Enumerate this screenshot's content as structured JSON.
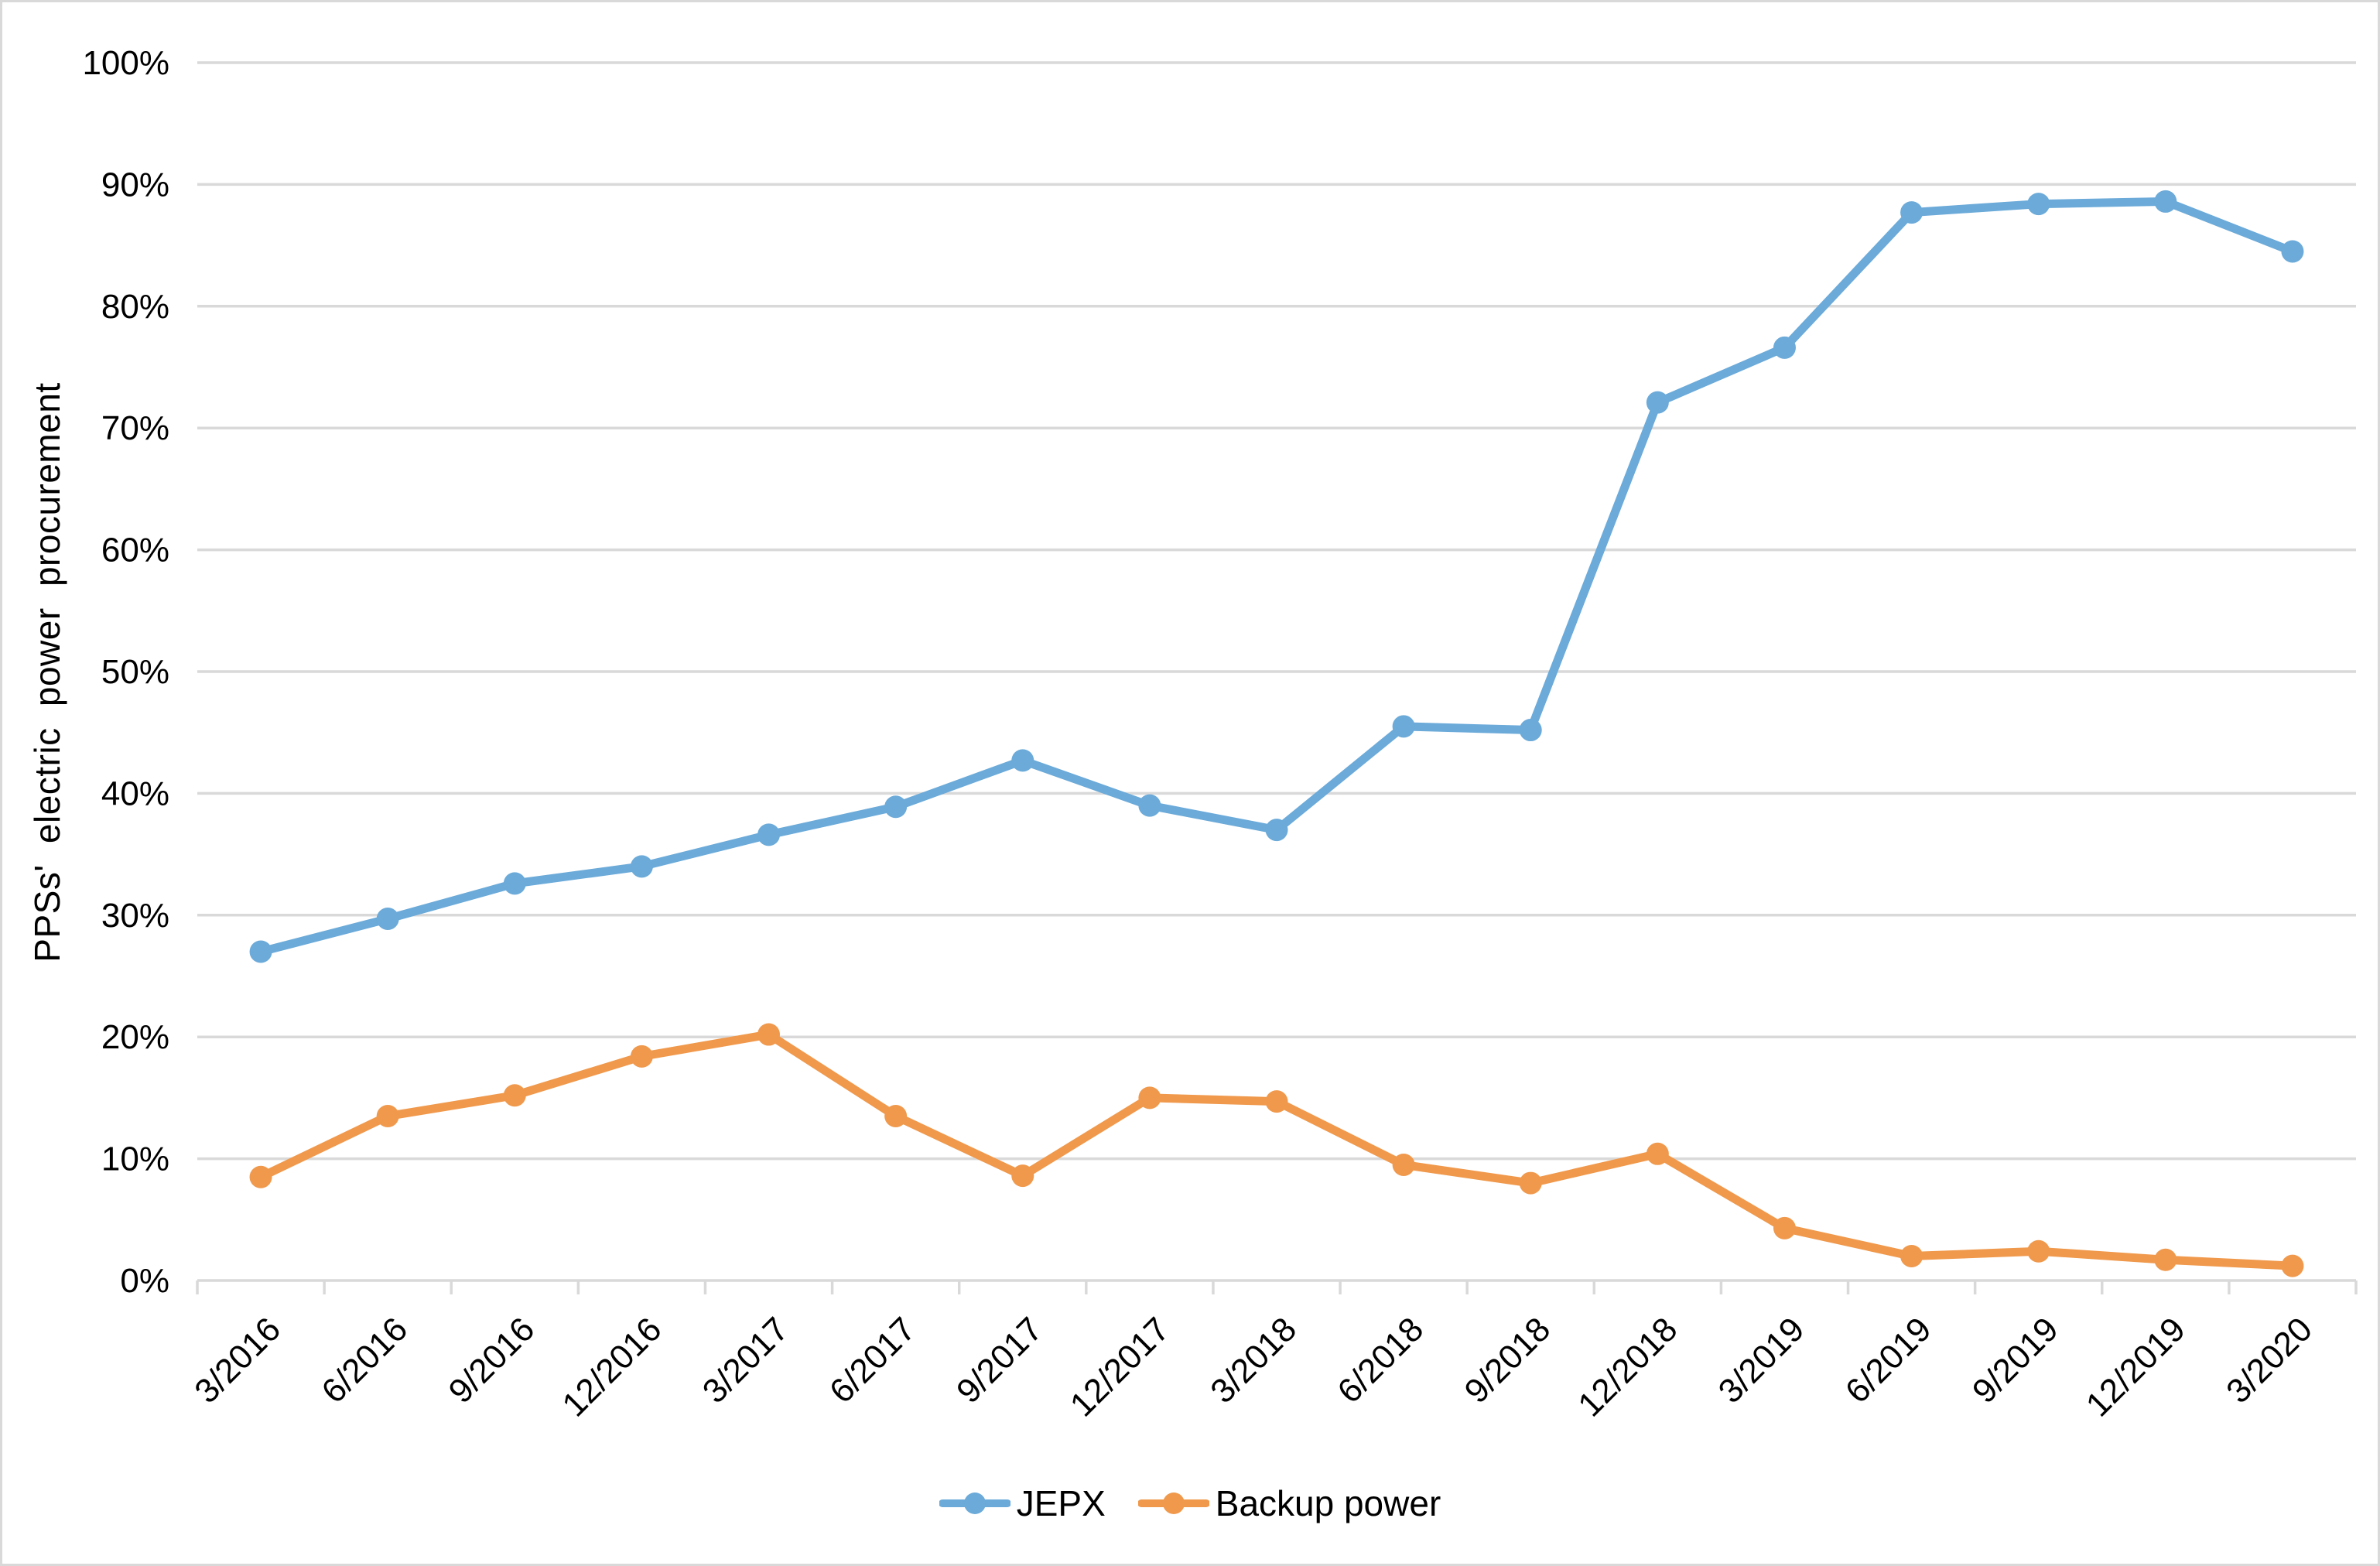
{
  "chart_data": {
    "type": "line",
    "title": "",
    "xlabel": "",
    "ylabel": "PPSs' electric power procurement",
    "ylim": [
      0,
      100
    ],
    "ytick_step": 10,
    "ytick_labels": [
      "0%",
      "10%",
      "20%",
      "30%",
      "40%",
      "50%",
      "60%",
      "70%",
      "80%",
      "90%",
      "100%"
    ],
    "grid": "horizontal",
    "legend_position": "bottom-center",
    "categories": [
      "3/2016",
      "6/2016",
      "9/2016",
      "12/2016",
      "3/2017",
      "6/2017",
      "9/2017",
      "12/2017",
      "3/2018",
      "6/2018",
      "9/2018",
      "12/2018",
      "3/2019",
      "6/2019",
      "9/2019",
      "12/2019",
      "3/2020"
    ],
    "series": [
      {
        "name": "JEPX",
        "color": "#6BAAD9",
        "values": [
          27.0,
          29.7,
          32.6,
          34.0,
          36.6,
          38.9,
          42.7,
          39.0,
          37.0,
          45.5,
          45.2,
          72.1,
          76.6,
          87.7,
          88.4,
          88.6,
          84.5
        ]
      },
      {
        "name": "Backup power",
        "color": "#F0994C",
        "values": [
          8.5,
          13.5,
          15.2,
          18.4,
          20.2,
          13.5,
          8.6,
          15.0,
          14.7,
          9.5,
          8.0,
          10.4,
          4.3,
          2.0,
          2.4,
          1.7,
          1.2
        ]
      }
    ],
    "colors": {
      "gridline": "#D9D9D9",
      "axis_line": "#D9D9D9",
      "tick_text": "#000000",
      "background": "#FFFFFF",
      "border": "#D9D9D9"
    }
  }
}
